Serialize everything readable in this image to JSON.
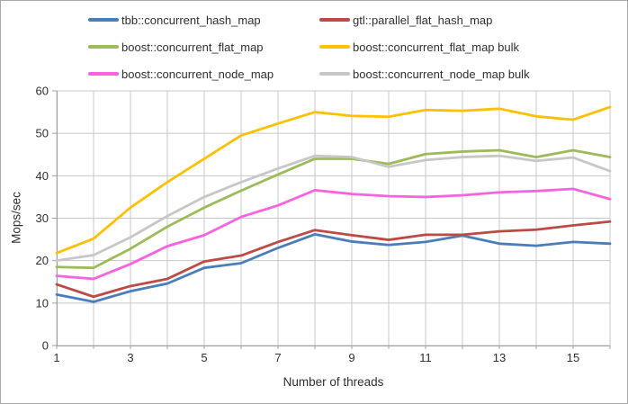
{
  "chart_data": {
    "type": "line",
    "title": "",
    "xlabel": "Number of threads",
    "ylabel": "Mops/sec",
    "x": [
      1,
      2,
      3,
      4,
      5,
      6,
      7,
      8,
      9,
      10,
      11,
      12,
      13,
      14,
      15,
      16
    ],
    "x_tick_labels": [
      1,
      3,
      5,
      7,
      9,
      11,
      13,
      15
    ],
    "y_tick_labels": [
      0,
      10,
      20,
      30,
      40,
      50,
      60
    ],
    "ylim": [
      0,
      60
    ],
    "xlim": [
      1,
      16
    ],
    "grid": true,
    "legend_position": "top",
    "style": {
      "gridline_color": "#c8c8c8",
      "axis_color": "#a0a0a0",
      "background": "#ffffff"
    },
    "series": [
      {
        "name": "tbb::concurrent_hash_map",
        "color": "#4a7ebb",
        "values": [
          12.0,
          10.3,
          12.8,
          14.6,
          18.3,
          19.4,
          23.0,
          26.2,
          24.5,
          23.7,
          24.4,
          25.9,
          24.0,
          23.5,
          24.4,
          24.0
        ]
      },
      {
        "name": "gtl::parallel_flat_hash_map",
        "color": "#bc4b46",
        "values": [
          14.4,
          11.5,
          14.0,
          15.7,
          19.8,
          21.2,
          24.4,
          27.2,
          26.0,
          24.9,
          26.1,
          26.1,
          26.9,
          27.3,
          28.3,
          29.2
        ]
      },
      {
        "name": "boost::concurrent_flat_map",
        "color": "#9cbb59",
        "values": [
          18.5,
          18.3,
          22.8,
          28.0,
          32.5,
          36.5,
          40.3,
          44.0,
          44.0,
          42.8,
          45.1,
          45.7,
          46.0,
          44.4,
          46.0,
          44.4
        ]
      },
      {
        "name": "boost::concurrent_flat_map bulk",
        "color": "#ffc000",
        "values": [
          21.8,
          25.2,
          32.5,
          38.5,
          44.0,
          49.5,
          52.3,
          55.0,
          54.1,
          53.9,
          55.5,
          55.3,
          55.8,
          54.0,
          53.2,
          56.2
        ]
      },
      {
        "name": "boost::concurrent_node_map",
        "color": "#fa62e0",
        "values": [
          16.4,
          15.7,
          19.2,
          23.4,
          26.0,
          30.3,
          33.0,
          36.6,
          35.7,
          35.2,
          35.0,
          35.4,
          36.1,
          36.4,
          36.9,
          34.5
        ]
      },
      {
        "name": "boost::concurrent_node_map bulk",
        "color": "#c7c7c7",
        "values": [
          20.0,
          21.3,
          25.5,
          30.5,
          35.0,
          38.5,
          41.7,
          44.7,
          44.4,
          42.1,
          43.7,
          44.4,
          44.7,
          43.5,
          44.3,
          41.1
        ]
      }
    ]
  }
}
